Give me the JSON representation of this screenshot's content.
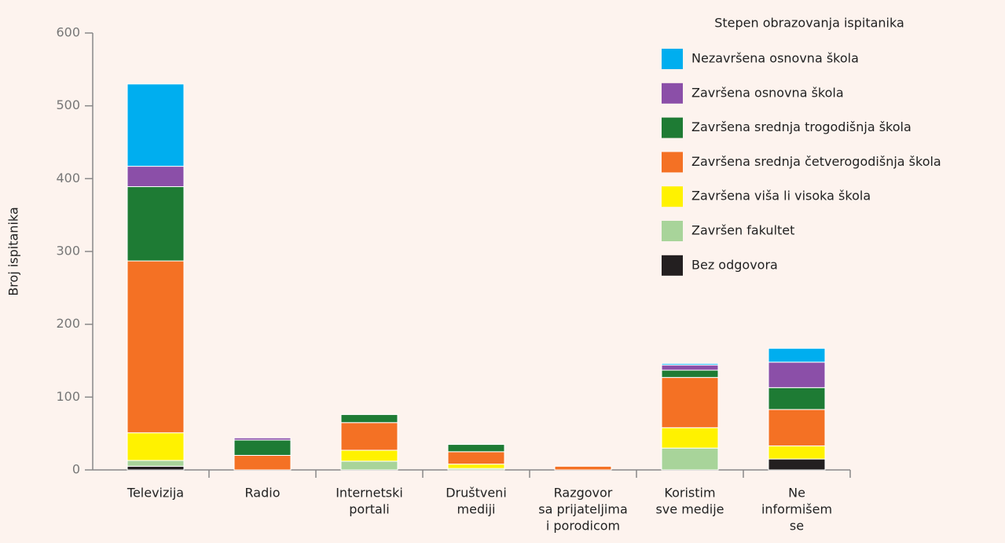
{
  "chart_data": {
    "type": "stacked_bar",
    "y_label": "Broj ispitanika",
    "legend_title": "Stepen obrazovanja ispitanika",
    "categories": [
      [
        "Televizija"
      ],
      [
        "Radio"
      ],
      [
        "Internetski",
        "portali"
      ],
      [
        "Društveni",
        "mediji"
      ],
      [
        "Razgovor",
        "sa prijateljima",
        "i porodicom"
      ],
      [
        "Koristim",
        "sve medije"
      ],
      [
        "Ne",
        "informišem",
        "se"
      ]
    ],
    "series": [
      {
        "name": "Nezavršena osnovna škola",
        "color": "#00aeef",
        "values": [
          113,
          0,
          0,
          0,
          0,
          2,
          19
        ]
      },
      {
        "name": "Završena osnovna škola",
        "color": "#8b4fa8",
        "values": [
          28,
          3,
          0,
          0,
          0,
          7,
          35
        ]
      },
      {
        "name": "Završena srednja trogodišnja škola",
        "color": "#1e7b34",
        "values": [
          102,
          21,
          11,
          10,
          0,
          10,
          30
        ]
      },
      {
        "name": "Završena srednja četverogodišnja škola",
        "color": "#f47124",
        "values": [
          236,
          20,
          38,
          17,
          5,
          69,
          50
        ]
      },
      {
        "name": "Završena viša li visoka škola",
        "color": "#fff200",
        "values": [
          38,
          0,
          15,
          6,
          0,
          28,
          18
        ]
      },
      {
        "name": "Završen fakultet",
        "color": "#a8d49a",
        "values": [
          8,
          0,
          12,
          2,
          0,
          30,
          0
        ]
      },
      {
        "name": "Bez odgovora",
        "color": "#231f20",
        "values": [
          5,
          0,
          0,
          0,
          0,
          0,
          15
        ]
      }
    ],
    "ylim": [
      0,
      600
    ],
    "yticks": [
      0,
      100,
      200,
      300,
      400,
      500,
      600
    ]
  }
}
